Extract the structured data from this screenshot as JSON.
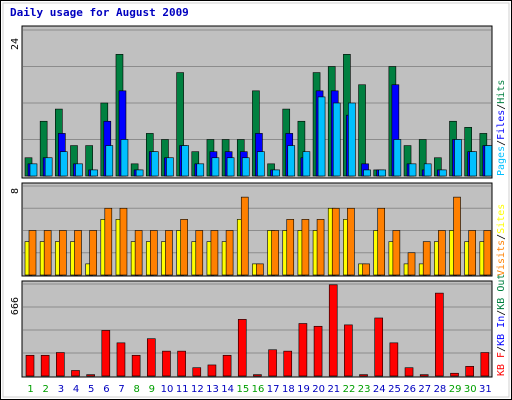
{
  "chart_data": {
    "type": "bar",
    "title": "Daily usage for August 2009",
    "categories": [
      "1",
      "2",
      "3",
      "4",
      "5",
      "6",
      "7",
      "8",
      "9",
      "10",
      "11",
      "12",
      "13",
      "14",
      "15",
      "16",
      "17",
      "18",
      "19",
      "20",
      "21",
      "22",
      "23",
      "24",
      "25",
      "26",
      "27",
      "28",
      "29",
      "30",
      "31"
    ],
    "weekend_days": [
      "1",
      "2",
      "8",
      "9",
      "15",
      "16",
      "22",
      "23",
      "29",
      "30"
    ],
    "colors": {
      "title": "#0000c0",
      "background": "#c0c0c0",
      "frame": "#d8d8d8",
      "weekday_label": "#0000c0",
      "weekend_label": "#00a000",
      "hits": "#008040",
      "files": "#0000ff",
      "pages": "#00c0ff",
      "visits": "#ffff00",
      "sites": "#ff8000",
      "kb": "#ff0000",
      "kb_in": "#0000ff",
      "kb_out": "#008040"
    },
    "panels": [
      {
        "name": "top",
        "max_label": "24",
        "ylim": [
          0,
          24
        ],
        "legend": [
          "Pages",
          "Files",
          "Hits"
        ],
        "series": [
          {
            "name": "Hits",
            "values": [
              3,
              9,
              11,
              5,
              5,
              12,
              20,
              2,
              7,
              6,
              17,
              4,
              6,
              6,
              6,
              14,
              2,
              11,
              9,
              17,
              18,
              20,
              15,
              1,
              18,
              5,
              6,
              3,
              9,
              8,
              7
            ]
          },
          {
            "name": "Files",
            "values": [
              2,
              3,
              7,
              2,
              1,
              9,
              14,
              1,
              4,
              3,
              5,
              2,
              4,
              4,
              4,
              7,
              1,
              7,
              3,
              14,
              14,
              10,
              2,
              1,
              15,
              2,
              1,
              1,
              6,
              4,
              5
            ]
          },
          {
            "name": "Pages",
            "values": [
              2,
              3,
              4,
              2,
              1,
              5,
              6,
              1,
              4,
              3,
              5,
              2,
              3,
              3,
              3,
              4,
              1,
              5,
              4,
              13,
              12,
              12,
              1,
              1,
              6,
              2,
              2,
              1,
              6,
              4,
              5
            ]
          }
        ]
      },
      {
        "name": "middle",
        "max_label": "8",
        "ylim": [
          0,
          8
        ],
        "legend": [
          "Visits",
          "Sites"
        ],
        "series": [
          {
            "name": "Visits",
            "values": [
              3,
              3,
              3,
              3,
              1,
              5,
              5,
              3,
              3,
              3,
              4,
              3,
              3,
              3,
              5,
              1,
              4,
              4,
              4,
              4,
              6,
              5,
              1,
              4,
              3,
              1,
              1,
              3,
              4,
              3,
              3
            ]
          },
          {
            "name": "Sites",
            "values": [
              4,
              4,
              4,
              4,
              4,
              6,
              6,
              4,
              4,
              4,
              5,
              4,
              4,
              4,
              7,
              1,
              4,
              5,
              5,
              5,
              6,
              6,
              1,
              6,
              4,
              2,
              3,
              4,
              7,
              4,
              4
            ]
          }
        ]
      },
      {
        "name": "bottom",
        "max_label": "666",
        "ylim": [
          0,
          666
        ],
        "legend": [
          "KB F",
          "KB In",
          "KB Out"
        ],
        "series": [
          {
            "name": "KB F",
            "values": [
              150,
              150,
              170,
              40,
              10,
              330,
              240,
              150,
              270,
              180,
              180,
              60,
              80,
              150,
              410,
              10,
              190,
              180,
              380,
              360,
              660,
              370,
              10,
              420,
              240,
              60,
              10,
              600,
              20,
              70,
              170
            ]
          }
        ]
      }
    ]
  }
}
